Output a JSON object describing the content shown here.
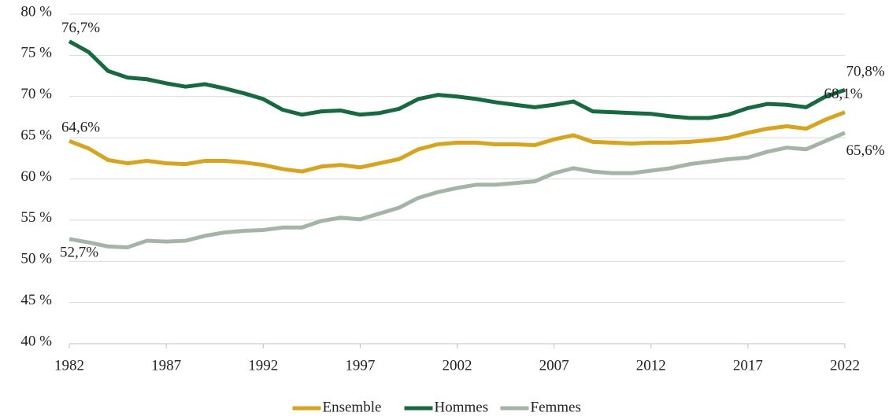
{
  "chart_data": {
    "type": "line",
    "x": [
      1982,
      1983,
      1984,
      1985,
      1986,
      1987,
      1988,
      1989,
      1990,
      1991,
      1992,
      1993,
      1994,
      1995,
      1996,
      1997,
      1998,
      1999,
      2000,
      2001,
      2002,
      2003,
      2004,
      2005,
      2006,
      2007,
      2008,
      2009,
      2010,
      2011,
      2012,
      2013,
      2014,
      2015,
      2016,
      2017,
      2018,
      2019,
      2020,
      2021,
      2022
    ],
    "series": [
      {
        "name": "Ensemble",
        "color": "#d9a41a",
        "values": [
          64.6,
          63.7,
          62.3,
          61.9,
          62.2,
          61.9,
          61.8,
          62.2,
          62.2,
          62.0,
          61.7,
          61.2,
          60.9,
          61.5,
          61.7,
          61.4,
          61.9,
          62.4,
          63.6,
          64.2,
          64.4,
          64.4,
          64.2,
          64.2,
          64.1,
          64.8,
          65.3,
          64.5,
          64.4,
          64.3,
          64.4,
          64.4,
          64.5,
          64.7,
          65.0,
          65.6,
          66.1,
          66.4,
          66.1,
          67.2,
          68.1
        ],
        "value_labels": [
          "64,6%",
          null,
          null,
          null,
          null,
          null,
          null,
          null,
          null,
          null,
          null,
          null,
          null,
          null,
          null,
          null,
          null,
          null,
          null,
          null,
          null,
          null,
          null,
          null,
          null,
          null,
          null,
          null,
          null,
          null,
          null,
          null,
          null,
          null,
          null,
          null,
          null,
          null,
          null,
          null,
          "68,1%"
        ]
      },
      {
        "name": "Hommes",
        "color": "#136b3e",
        "values": [
          76.7,
          75.4,
          73.1,
          72.3,
          72.1,
          71.6,
          71.2,
          71.5,
          71.0,
          70.4,
          69.7,
          68.4,
          67.8,
          68.2,
          68.3,
          67.8,
          68.0,
          68.5,
          69.7,
          70.2,
          70.0,
          69.7,
          69.3,
          69.0,
          68.7,
          69.0,
          69.4,
          68.2,
          68.1,
          68.0,
          67.9,
          67.6,
          67.4,
          67.4,
          67.8,
          68.6,
          69.1,
          69.0,
          68.7,
          70.0,
          70.8
        ],
        "value_labels": [
          "76,7%",
          null,
          null,
          null,
          null,
          null,
          null,
          null,
          null,
          null,
          null,
          null,
          null,
          null,
          null,
          null,
          null,
          null,
          null,
          null,
          null,
          null,
          null,
          null,
          null,
          null,
          null,
          null,
          null,
          null,
          null,
          null,
          null,
          null,
          null,
          null,
          null,
          null,
          null,
          null,
          "70,8%"
        ]
      },
      {
        "name": "Femmes",
        "color": "#a3b6a6",
        "values": [
          52.7,
          52.3,
          51.8,
          51.7,
          52.5,
          52.4,
          52.5,
          53.1,
          53.5,
          53.7,
          53.8,
          54.1,
          54.1,
          54.9,
          55.3,
          55.1,
          55.8,
          56.5,
          57.7,
          58.4,
          58.9,
          59.3,
          59.3,
          59.5,
          59.7,
          60.7,
          61.3,
          60.9,
          60.7,
          60.7,
          61.0,
          61.3,
          61.8,
          62.1,
          62.4,
          62.6,
          63.3,
          63.8,
          63.6,
          64.6,
          65.6
        ],
        "value_labels": [
          "52,7%",
          null,
          null,
          null,
          null,
          null,
          null,
          null,
          null,
          null,
          null,
          null,
          null,
          null,
          null,
          null,
          null,
          null,
          null,
          null,
          null,
          null,
          null,
          null,
          null,
          null,
          null,
          null,
          null,
          null,
          null,
          null,
          null,
          null,
          null,
          null,
          null,
          null,
          null,
          null,
          "65,6%"
        ]
      }
    ],
    "xlim": [
      1982,
      2022
    ],
    "xticks": [
      1982,
      1987,
      1992,
      1997,
      2002,
      2007,
      2012,
      2017,
      2022
    ],
    "ylim": [
      40,
      80
    ],
    "yticks": [
      {
        "value": 40,
        "label": "40 %"
      },
      {
        "value": 45,
        "label": "45 %"
      },
      {
        "value": 50,
        "label": "50 %"
      },
      {
        "value": 55,
        "label": "55 %"
      },
      {
        "value": 60,
        "label": "60 %"
      },
      {
        "value": 65,
        "label": "65 %"
      },
      {
        "value": 70,
        "label": "70 %"
      },
      {
        "value": 75,
        "label": "75 %"
      },
      {
        "value": 80,
        "label": "80 %"
      }
    ],
    "grid": true,
    "legend": "bottom"
  }
}
